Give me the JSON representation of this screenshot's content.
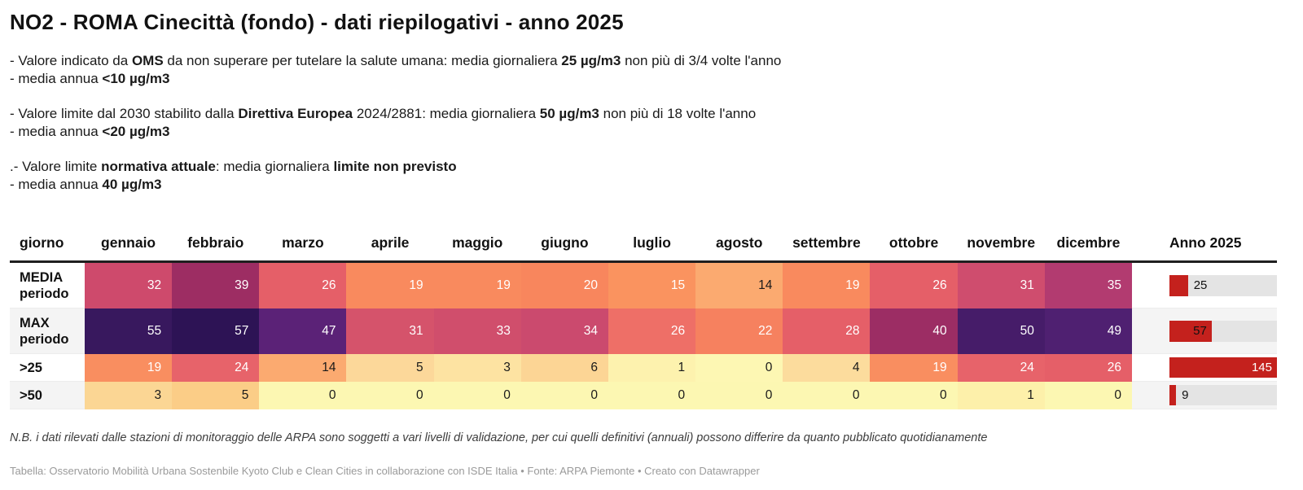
{
  "title": "NO2 - ROMA Cinecittà (fondo) - dati riepilogativi - anno 2025",
  "notes": {
    "oms": {
      "line1": {
        "p0": "- Valore indicato da ",
        "p1": "OMS",
        "p2": " da non superare per tutelare la salute umana: media giornaliera ",
        "p3": "25 µg/m3",
        "p4": " non più di 3/4 volte l'anno"
      },
      "line2": {
        "p0": "- media annua ",
        "p1": "<10 µg/m3"
      }
    },
    "eu": {
      "line1": {
        "p0": "- Valore limite dal 2030 stabilito dalla ",
        "p1": "Direttiva Europea",
        "p2": " 2024/2881: media giornaliera ",
        "p3": "50 µg/m3",
        "p4": " non più di 18 volte l'anno"
      },
      "line2": {
        "p0": "- media annua ",
        "p1": "<20 µg/m3"
      }
    },
    "current": {
      "line1": {
        "p0": ".- Valore limite ",
        "p1": "normativa attuale",
        "p2": ": media giornaliera ",
        "p3": "limite non previsto",
        "p4": ""
      },
      "line2": {
        "p0": "- media annua ",
        "p1": "40 µg/m3"
      }
    }
  },
  "theme": {
    "bar_color": "#c4211d",
    "bar_track_color": "#e4e4e4",
    "header_rule_color": "#1f1f1f",
    "row_alt_color": "#f4f4f4"
  },
  "chart_data": {
    "type": "table",
    "title": "NO2 - ROMA Cinecittà (fondo) - dati riepilogativi - anno 2025",
    "categories": [
      "gennaio",
      "febbraio",
      "marzo",
      "aprile",
      "maggio",
      "giugno",
      "luglio",
      "agosto",
      "settembre",
      "ottobre",
      "novembre",
      "dicembre"
    ],
    "series": [
      {
        "name": "MEDIA periodo",
        "values": [
          32,
          39,
          26,
          19,
          19,
          20,
          15,
          14,
          19,
          26,
          31,
          35
        ],
        "anno_2025": 25
      },
      {
        "name": "MAX periodo",
        "values": [
          55,
          57,
          47,
          31,
          33,
          34,
          26,
          22,
          28,
          40,
          50,
          49
        ],
        "anno_2025": 57
      },
      {
        "name": ">25",
        "values": [
          19,
          24,
          14,
          5,
          3,
          6,
          1,
          0,
          4,
          19,
          24,
          26
        ],
        "anno_2025": 145
      },
      {
        "name": ">50",
        "values": [
          3,
          5,
          0,
          0,
          0,
          0,
          0,
          0,
          0,
          0,
          1,
          0
        ],
        "anno_2025": 9
      }
    ],
    "anno_bar_max": 145,
    "heatmap": true,
    "legend_position": "none"
  },
  "table": {
    "columns": [
      "giorno",
      "gennaio",
      "febbraio",
      "marzo",
      "aprile",
      "maggio",
      "giugno",
      "luglio",
      "agosto",
      "settembre",
      "ottobre",
      "novembre",
      "dicembre",
      "Anno 2025"
    ],
    "rows": [
      {
        "label": "MEDIA\nperiodo",
        "tall": true,
        "alt": false,
        "cells": [
          {
            "v": "32",
            "bg": "#ce4a6c",
            "fg": "#ffffff"
          },
          {
            "v": "39",
            "bg": "#9d2d63",
            "fg": "#ffffff"
          },
          {
            "v": "26",
            "bg": "#e55f68",
            "fg": "#ffffff"
          },
          {
            "v": "19",
            "bg": "#f98a5e",
            "fg": "#ffffff"
          },
          {
            "v": "19",
            "bg": "#f98a5e",
            "fg": "#ffffff"
          },
          {
            "v": "20",
            "bg": "#f8865d",
            "fg": "#ffffff"
          },
          {
            "v": "15",
            "bg": "#fa935f",
            "fg": "#ffffff"
          },
          {
            "v": "14",
            "bg": "#fbaa70",
            "fg": "#1a1a1a"
          },
          {
            "v": "19",
            "bg": "#f98a5e",
            "fg": "#ffffff"
          },
          {
            "v": "26",
            "bg": "#e55f68",
            "fg": "#ffffff"
          },
          {
            "v": "31",
            "bg": "#cf4d6e",
            "fg": "#ffffff"
          },
          {
            "v": "35",
            "bg": "#b23b70",
            "fg": "#ffffff"
          }
        ],
        "bar": {
          "value": "25",
          "pct": 17.2,
          "label_pos": "outside",
          "label_color": "#111111"
        }
      },
      {
        "label": "MAX\nperiodo",
        "tall": true,
        "alt": true,
        "cells": [
          {
            "v": "55",
            "bg": "#38185e",
            "fg": "#ffffff"
          },
          {
            "v": "57",
            "bg": "#2d1355",
            "fg": "#ffffff"
          },
          {
            "v": "47",
            "bg": "#5b2277",
            "fg": "#ffffff"
          },
          {
            "v": "31",
            "bg": "#d5536b",
            "fg": "#ffffff"
          },
          {
            "v": "33",
            "bg": "#d04e6c",
            "fg": "#ffffff"
          },
          {
            "v": "34",
            "bg": "#cb4a6e",
            "fg": "#ffffff"
          },
          {
            "v": "26",
            "bg": "#ee6f67",
            "fg": "#ffffff"
          },
          {
            "v": "22",
            "bg": "#f6815f",
            "fg": "#ffffff"
          },
          {
            "v": "28",
            "bg": "#e55f68",
            "fg": "#ffffff"
          },
          {
            "v": "40",
            "bg": "#9c2d64",
            "fg": "#ffffff"
          },
          {
            "v": "50",
            "bg": "#461c69",
            "fg": "#ffffff"
          },
          {
            "v": "49",
            "bg": "#4f2071",
            "fg": "#ffffff"
          }
        ],
        "bar": {
          "value": "57",
          "pct": 39.3,
          "label_pos": "inside",
          "label_color": "#111111"
        }
      },
      {
        "label": ">25",
        "tall": false,
        "alt": false,
        "cells": [
          {
            "v": "19",
            "bg": "#f98e60",
            "fg": "#ffffff"
          },
          {
            "v": "24",
            "bg": "#e7636a",
            "fg": "#ffffff"
          },
          {
            "v": "14",
            "bg": "#fbaa70",
            "fg": "#1a1a1a"
          },
          {
            "v": "5",
            "bg": "#fcd89a",
            "fg": "#1a1a1a"
          },
          {
            "v": "3",
            "bg": "#fde3a2",
            "fg": "#1a1a1a"
          },
          {
            "v": "6",
            "bg": "#fcd595",
            "fg": "#1a1a1a"
          },
          {
            "v": "1",
            "bg": "#fdf2ae",
            "fg": "#1a1a1a"
          },
          {
            "v": "0",
            "bg": "#fdf7b3",
            "fg": "#1a1a1a"
          },
          {
            "v": "4",
            "bg": "#fcdc9d",
            "fg": "#1a1a1a"
          },
          {
            "v": "19",
            "bg": "#f98e60",
            "fg": "#ffffff"
          },
          {
            "v": "24",
            "bg": "#e7636a",
            "fg": "#ffffff"
          },
          {
            "v": "26",
            "bg": "#e55f68",
            "fg": "#ffffff"
          }
        ],
        "bar": {
          "value": "145",
          "pct": 100,
          "label_pos": "inside",
          "label_color": "#ffffff"
        }
      },
      {
        "label": ">50",
        "tall": false,
        "alt": true,
        "cells": [
          {
            "v": "3",
            "bg": "#fbd694",
            "fg": "#1a1a1a"
          },
          {
            "v": "5",
            "bg": "#fbcd87",
            "fg": "#1a1a1a"
          },
          {
            "v": "0",
            "bg": "#fcf7b2",
            "fg": "#1a1a1a"
          },
          {
            "v": "0",
            "bg": "#fcf7b2",
            "fg": "#1a1a1a"
          },
          {
            "v": "0",
            "bg": "#fcf7b2",
            "fg": "#1a1a1a"
          },
          {
            "v": "0",
            "bg": "#fcf7b2",
            "fg": "#1a1a1a"
          },
          {
            "v": "0",
            "bg": "#fcf7b2",
            "fg": "#1a1a1a"
          },
          {
            "v": "0",
            "bg": "#fcf7b2",
            "fg": "#1a1a1a"
          },
          {
            "v": "0",
            "bg": "#fcf7b2",
            "fg": "#1a1a1a"
          },
          {
            "v": "0",
            "bg": "#fcf7b2",
            "fg": "#1a1a1a"
          },
          {
            "v": "1",
            "bg": "#fdf0aa",
            "fg": "#1a1a1a"
          },
          {
            "v": "0",
            "bg": "#fcf7b2",
            "fg": "#1a1a1a"
          }
        ],
        "bar": {
          "value": "9",
          "pct": 6.2,
          "label_pos": "outside",
          "label_color": "#111111"
        }
      }
    ]
  },
  "footer": {
    "nb": "N.B. i dati rilevati dalle stazioni di monitoraggio delle ARPA sono soggetti a vari livelli di validazione, per cui quelli definitivi (annuali) possono differire da quanto pubblicato quotidianamente",
    "attribution": "Tabella: Osservatorio Mobilità Urbana Sostenbile Kyoto Club e Clean Cities in collaborazione con ISDE Italia • Fonte: ARPA Piemonte • Creato con Datawrapper"
  }
}
